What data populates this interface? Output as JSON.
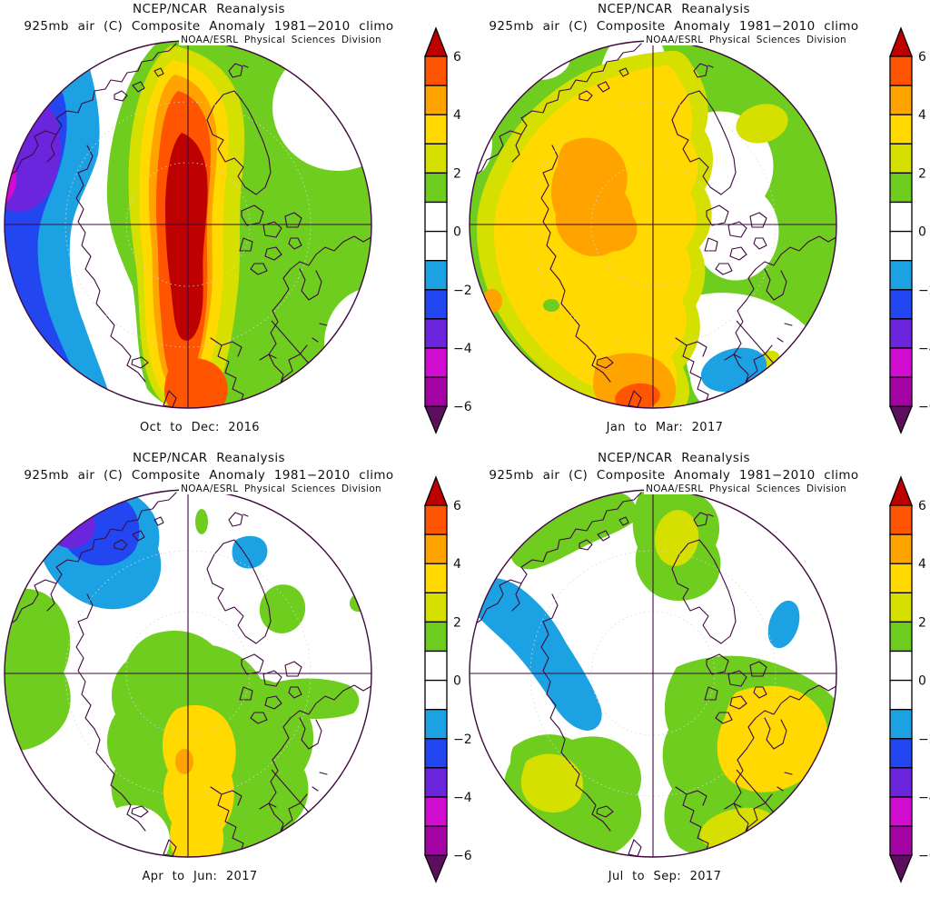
{
  "page": {
    "background": "#ffffff"
  },
  "shared": {
    "title": "NCEP/NCAR Reanalysis",
    "subtitle": "925mb air (C) Composite Anomaly 1981−2010 climo",
    "watermark": "NOAA/ESRL Physical Sciences Division"
  },
  "panels": [
    {
      "title": "NCEP/NCAR Reanalysis",
      "subtitle": "925mb air (C) Composite Anomaly 1981−2010 climo",
      "watermark": "NOAA/ESRL Physical Sciences Division",
      "caption": "Oct to Dec: 2016"
    },
    {
      "title": "NCEP/NCAR Reanalysis",
      "subtitle": "925mb air (C) Composite Anomaly 1981−2010 climo",
      "watermark": "NOAA/ESRL Physical Sciences Division",
      "caption": "Jan to Mar: 2017"
    },
    {
      "title": "NCEP/NCAR Reanalysis",
      "subtitle": "925mb air (C) Composite Anomaly 1981−2010 climo",
      "watermark": "NOAA/ESRL Physical Sciences Division",
      "caption": "Apr to Jun: 2017"
    },
    {
      "title": "NCEP/NCAR Reanalysis",
      "subtitle": "925mb air (C) Composite Anomaly 1981−2010 climo",
      "watermark": "NOAA/ESRL Physical Sciences Division",
      "caption": "Jul to Sep: 2017"
    }
  ],
  "colorbar": {
    "units": "C",
    "min": -6,
    "max": 6,
    "contour_interval": 1,
    "ticks": [
      "6",
      "4",
      "2",
      "0",
      "−2",
      "−4",
      "−6"
    ],
    "tick_values": [
      6,
      4,
      2,
      0,
      -2,
      -4,
      -6
    ],
    "segments_top_to_bottom": [
      "#ff5400",
      "#ffa300",
      "#ffd900",
      "#d5df00",
      "#6ecd1f",
      "#ffffff",
      "#ffffff",
      "#1ca2e3",
      "#2247f0",
      "#6a25dd",
      "#d20dd2",
      "#a303a3"
    ],
    "above_color": "#bd0000",
    "below_color": "#5c0f5c",
    "outline_color": "#000000"
  },
  "map_style": {
    "coast_color": "#3f0a3f",
    "grid_color": "#3f0a3f",
    "latitude_circle_color": "#d8d8d8"
  },
  "chart_data": [
    {
      "type": "heatmap",
      "title": "NCEP/NCAR Reanalysis",
      "subtitle": "925mb air (C) Composite Anomaly 1981−2010 climo",
      "period": "Oct to Dec: 2016",
      "projection": "north polar stereographic",
      "variable": "925mb air temperature anomaly (C)",
      "colorbar_range": [
        -6,
        6
      ],
      "notable_features": [
        {
          "region": "central Arctic Ocean around pole",
          "anomaly_c": "+6 and above (dark red core)"
        },
        {
          "region": "broad ring over N. America, N. Atlantic, N. Europe",
          "anomaly_c": "+1 to +5"
        },
        {
          "region": "eastern Siberia limb (left edge)",
          "anomaly_c": "-2 to -5 with small -5 patch"
        },
        {
          "region": "band between cold and warm regions",
          "anomaly_c": "near 0 (white)"
        }
      ]
    },
    {
      "type": "heatmap",
      "title": "NCEP/NCAR Reanalysis",
      "subtitle": "925mb air (C) Composite Anomaly 1981−2010 climo",
      "period": "Jan to Mar: 2017",
      "projection": "north polar stereographic",
      "variable": "925mb air temperature anomaly (C)",
      "colorbar_range": [
        -6,
        6
      ],
      "notable_features": [
        {
          "region": "central/eastern Siberia and Kara sector",
          "anomaly_c": "+3 to +5 (orange patches)"
        },
        {
          "region": "most of Eurasian Arctic half",
          "anomaly_c": "+2 to +4 (yellow)"
        },
        {
          "region": "North America / Greenland half",
          "anomaly_c": "0 to +2 (green/white)"
        },
        {
          "region": "south of Greenland, N. Atlantic spot",
          "anomaly_c": "-1 to -2 (light blue)"
        },
        {
          "region": "Europe bottom-center",
          "anomaly_c": "+4 to +5 (orange-red)"
        }
      ]
    },
    {
      "type": "heatmap",
      "title": "NCEP/NCAR Reanalysis",
      "subtitle": "925mb air (C) Composite Anomaly 1981−2010 climo",
      "period": "Apr to Jun: 2017",
      "projection": "north polar stereographic",
      "variable": "925mb air temperature anomaly (C)",
      "colorbar_range": [
        -6,
        6
      ],
      "notable_features": [
        {
          "region": "Baffin Bay / NE Canada / W Greenland",
          "anomaly_c": "-2 to -4 (blue with violet core)"
        },
        {
          "region": "small spot poleward of Canada",
          "anomaly_c": "-1 to -2"
        },
        {
          "region": "N. Eurasia and Europe sector",
          "anomaly_c": "+1 to +3 (green/yellow) with small +4 spot"
        },
        {
          "region": "most of Arctic basin",
          "anomaly_c": "near 0 (white)"
        }
      ]
    },
    {
      "type": "heatmap",
      "title": "NCEP/NCAR Reanalysis",
      "subtitle": "925mb air (C) Composite Anomaly 1981−2010 climo",
      "period": "Jul to Sep: 2017",
      "projection": "north polar stereographic",
      "variable": "925mb air temperature anomaly (C)",
      "colorbar_range": [
        -6,
        6
      ],
      "notable_features": [
        {
          "region": "diagonal band Alaska toward pole",
          "anomaly_c": "-1 to -2 (light blue)"
        },
        {
          "region": "Scandinavia spot",
          "anomaly_c": "-1 to -2 (light blue)"
        },
        {
          "region": "central Russia / Caspian sector",
          "anomaly_c": "+2 to +3 (yellow core)"
        },
        {
          "region": "scattered mid-latitude patches",
          "anomaly_c": "+1 to +2 (green)"
        },
        {
          "region": "rest of Arctic basin",
          "anomaly_c": "near 0 (white)"
        }
      ]
    }
  ]
}
